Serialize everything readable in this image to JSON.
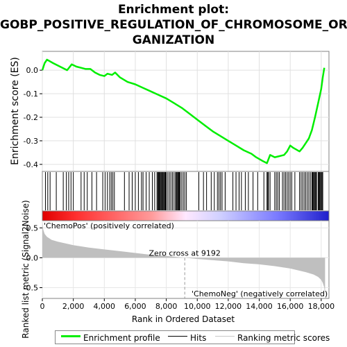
{
  "title_lines": [
    "Enrichment plot:",
    "GOBP_POSITIVE_REGULATION_OF_CHROMOSOME_OR",
    "GANIZATION"
  ],
  "colors": {
    "enrichment_line": "#00ee00",
    "hits": "#000000",
    "metric_fill": "#bfbfbf",
    "pos_label": "#dd0000",
    "neg_label": "#0000cc"
  },
  "chart_data": [
    {
      "type": "line",
      "name": "enrichment",
      "ylabel": "Enrichment score (ES)",
      "xlim": [
        0,
        18500
      ],
      "ylim": [
        -0.43,
        0.08
      ],
      "y_ticks": [
        0.0,
        -0.1,
        -0.2,
        -0.3,
        -0.4
      ],
      "y_tick_labels": [
        "0.0",
        "-0.1",
        "-0.2",
        "-0.3",
        "-0.4"
      ],
      "grid": true,
      "series": [
        {
          "name": "Enrichment profile",
          "x": [
            0,
            150,
            300,
            700,
            1000,
            1300,
            1600,
            1900,
            2200,
            2500,
            2800,
            3100,
            3400,
            3700,
            4000,
            4200,
            4500,
            4700,
            5000,
            5500,
            6000,
            6500,
            7000,
            7500,
            8000,
            8500,
            9000,
            9500,
            10000,
            10500,
            11000,
            11500,
            12000,
            12500,
            13000,
            13500,
            13800,
            14200,
            14500,
            14700,
            15000,
            15300,
            15600,
            15800,
            16000,
            16200,
            16600,
            16800,
            17000,
            17200,
            17400,
            17600,
            17800,
            18000,
            18100,
            18200
          ],
          "y": [
            0.0,
            0.03,
            0.045,
            0.03,
            0.02,
            0.01,
            0.0,
            0.025,
            0.015,
            0.01,
            0.005,
            0.005,
            -0.01,
            -0.02,
            -0.025,
            -0.015,
            -0.02,
            -0.01,
            -0.03,
            -0.05,
            -0.06,
            -0.075,
            -0.09,
            -0.105,
            -0.12,
            -0.14,
            -0.16,
            -0.185,
            -0.21,
            -0.235,
            -0.26,
            -0.28,
            -0.3,
            -0.32,
            -0.34,
            -0.355,
            -0.37,
            -0.385,
            -0.395,
            -0.36,
            -0.37,
            -0.365,
            -0.36,
            -0.345,
            -0.32,
            -0.33,
            -0.345,
            -0.33,
            -0.31,
            -0.29,
            -0.255,
            -0.2,
            -0.14,
            -0.08,
            -0.03,
            0.01
          ]
        }
      ]
    },
    {
      "type": "bar",
      "name": "hits",
      "series": [
        {
          "name": "Hits",
          "x": [
            200,
            350,
            500,
            900,
            1350,
            1550,
            1700,
            1850,
            2000,
            2500,
            2700,
            2900,
            3200,
            3500,
            3900,
            4050,
            4200,
            4350,
            4450,
            4550,
            4650,
            5300,
            5600,
            5800,
            6000,
            6200,
            6400,
            6500,
            6700,
            6900,
            7100,
            7250,
            7400,
            7450,
            7500,
            7550,
            7600,
            7650,
            7700,
            7750,
            7800,
            7850,
            7900,
            7950,
            8000,
            8100,
            8200,
            8300,
            8400,
            8500,
            8600,
            8650,
            8700,
            8750,
            8800,
            8850,
            8900,
            9000,
            9100,
            9200,
            9300,
            10100,
            10400,
            10600,
            10900,
            11100,
            11300,
            11400,
            11500,
            11600,
            11800,
            12300,
            12500,
            12700,
            12850,
            13100,
            13300,
            13600,
            13900,
            14300,
            14500,
            14550,
            14600,
            14700,
            15000,
            15100,
            15200,
            15300,
            15500,
            15600,
            15700,
            15800,
            15900,
            16000,
            16100,
            16300,
            16600,
            16700,
            16800,
            16900,
            17000,
            17100,
            17200,
            17300,
            17400,
            17450,
            17500,
            17550,
            17600,
            17650,
            17700,
            17800,
            17850,
            17900,
            17950,
            18000,
            18050,
            18100
          ]
        }
      ]
    },
    {
      "type": "area",
      "name": "ranked_metric",
      "xlabel": "Rank in Ordered Dataset",
      "ylabel": "Ranked list metric (Signal2Noise)",
      "xlim": [
        0,
        18500
      ],
      "ylim": [
        -0.68,
        0.62
      ],
      "x_ticks": [
        0,
        2000,
        4000,
        6000,
        8000,
        10000,
        12000,
        14000,
        16000,
        18000
      ],
      "x_tick_labels": [
        "0",
        "2,000",
        "4,000",
        "6,000",
        "8,000",
        "10,000",
        "12,000",
        "14,000",
        "16,000",
        "18,000"
      ],
      "y_ticks": [
        0.5,
        0.0,
        -0.5
      ],
      "y_tick_labels": [
        "0.5",
        "0.0",
        "-0.5"
      ],
      "grid": true,
      "zero_cross_label": "Zero cross at 9192",
      "zero_cross_rank": 9192,
      "pos_label": "'ChemoPos' (positively correlated)",
      "neg_label": "'ChemoNeg' (negatively correlated)",
      "series": [
        {
          "name": "Ranking metric scores",
          "x": [
            0,
            50,
            150,
            300,
            600,
            1000,
            1500,
            2000,
            3000,
            4000,
            5000,
            6000,
            7000,
            8000,
            9192,
            10000,
            11000,
            12000,
            13000,
            14000,
            15000,
            16000,
            16500,
            17000,
            17500,
            17800,
            18000,
            18100,
            18200,
            18250
          ],
          "y": [
            0.6,
            0.48,
            0.4,
            0.35,
            0.3,
            0.27,
            0.24,
            0.21,
            0.17,
            0.14,
            0.11,
            0.08,
            0.05,
            0.03,
            0.0,
            -0.02,
            -0.04,
            -0.06,
            -0.09,
            -0.11,
            -0.14,
            -0.18,
            -0.21,
            -0.24,
            -0.28,
            -0.32,
            -0.37,
            -0.42,
            -0.5,
            -0.65
          ]
        }
      ]
    }
  ],
  "legend": {
    "items": [
      {
        "label": "Enrichment profile"
      },
      {
        "label": "Hits"
      },
      {
        "label": "Ranking metric scores"
      }
    ]
  }
}
